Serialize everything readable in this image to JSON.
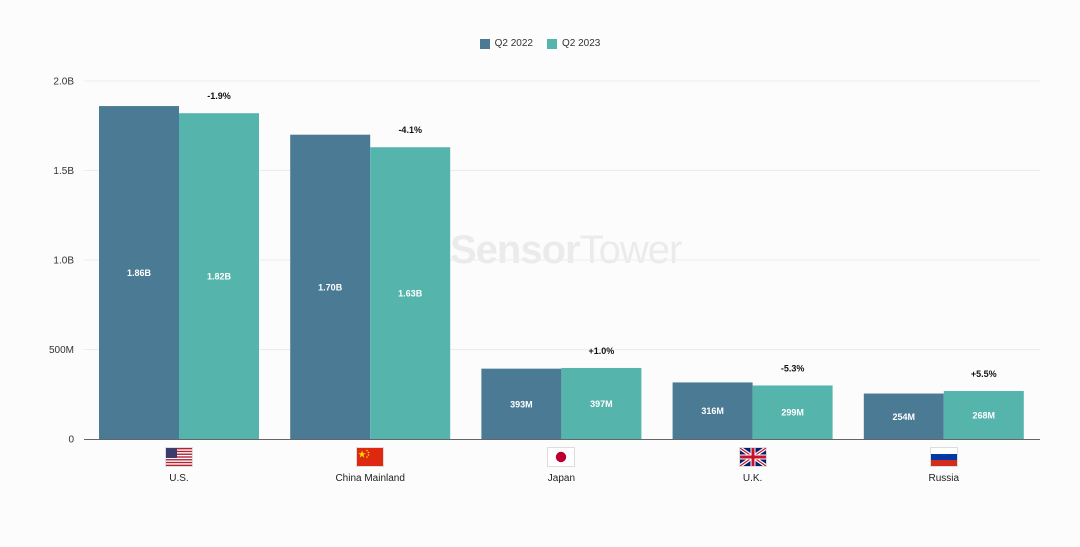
{
  "colors": {
    "q2_2022": "#4a7a94",
    "q2_2023": "#55b5ad",
    "grid": "#ececec",
    "axis": "#555555"
  },
  "legend": [
    {
      "label": "Q2 2022",
      "color": "#4a7a94"
    },
    {
      "label": "Q2 2023",
      "color": "#55b5ad"
    }
  ],
  "watermark": {
    "brand_bold": "Sensor",
    "brand_thin": "Tower"
  },
  "chart_data": {
    "type": "bar",
    "title": "",
    "xlabel": "",
    "ylabel": "",
    "ylim": [
      0,
      2000000000
    ],
    "yticks": [
      {
        "value": 0,
        "label": "0"
      },
      {
        "value": 500000000,
        "label": "500M"
      },
      {
        "value": 1000000000,
        "label": "1.0B"
      },
      {
        "value": 1500000000,
        "label": "1.5B"
      },
      {
        "value": 2000000000,
        "label": "2.0B"
      }
    ],
    "categories": [
      "U.S.",
      "China Mainland",
      "Japan",
      "U.K.",
      "Russia"
    ],
    "flags": [
      "us-flag-icon",
      "china-flag-icon",
      "japan-flag-icon",
      "uk-flag-icon",
      "russia-flag-icon"
    ],
    "series": [
      {
        "name": "Q2 2022",
        "values": [
          1860000000,
          1700000000,
          393000000,
          316000000,
          254000000
        ],
        "labels": [
          "1.86B",
          "1.70B",
          "393M",
          "316M",
          "254M"
        ]
      },
      {
        "name": "Q2 2023",
        "values": [
          1820000000,
          1630000000,
          397000000,
          299000000,
          268000000
        ],
        "labels": [
          "1.82B",
          "1.63B",
          "397M",
          "299M",
          "268M"
        ]
      }
    ],
    "annotations": [
      "-1.9%",
      "-4.1%",
      "+1.0%",
      "-5.3%",
      "+5.5%"
    ],
    "grid": true,
    "legend_position": "top-center"
  }
}
